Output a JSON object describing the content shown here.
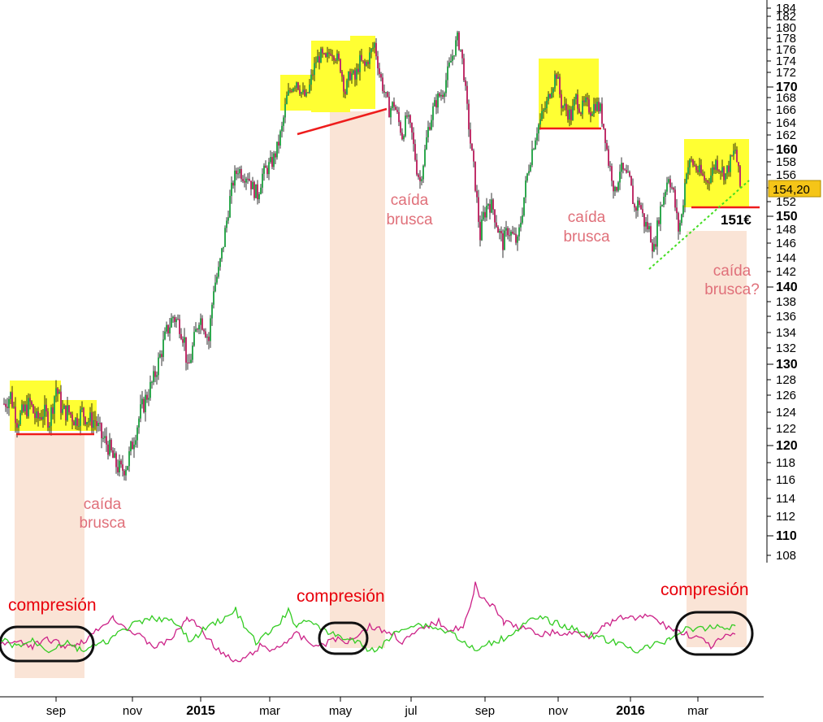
{
  "chart_data": {
    "type": "candlestick",
    "y_axis": {
      "range": [
        106,
        186
      ],
      "minor_ticks": [
        108,
        112,
        114,
        116,
        118,
        122,
        124,
        126,
        128,
        132,
        134,
        136,
        138,
        142,
        144,
        146,
        148,
        152,
        154,
        156,
        158,
        162,
        164,
        166,
        168,
        172,
        174,
        176,
        178,
        180,
        182,
        184
      ],
      "major_ticks": [
        110,
        120,
        130,
        140,
        150,
        160,
        170
      ],
      "labels": [
        "184",
        "180",
        "176",
        "172",
        "170",
        "168",
        "166",
        "164",
        "162",
        "160",
        "158",
        "156",
        "152",
        "150",
        "148",
        "146",
        "144",
        "142",
        "140",
        "138",
        "136",
        "134",
        "132",
        "130",
        "128",
        "126",
        "124",
        "122",
        "120",
        "118",
        "116",
        "114",
        "112",
        "110",
        "108"
      ]
    },
    "x_axis": {
      "labels": [
        {
          "text": "sep",
          "major": false
        },
        {
          "text": "nov",
          "major": false
        },
        {
          "text": "2015",
          "major": true
        },
        {
          "text": "mar",
          "major": false
        },
        {
          "text": "may",
          "major": false
        },
        {
          "text": "jul",
          "major": false
        },
        {
          "text": "sep",
          "major": false
        },
        {
          "text": "nov",
          "major": false
        },
        {
          "text": "2016",
          "major": true
        },
        {
          "text": "mar",
          "major": false
        },
        {
          "text": "mar",
          "major": false
        }
      ]
    },
    "last_price": {
      "label": "154,20",
      "value": 154.2
    },
    "support_label": {
      "text": "151€",
      "value": 151
    },
    "price_anchors": [
      [
        0,
        125
      ],
      [
        8,
        126
      ],
      [
        16,
        123
      ],
      [
        24,
        124
      ],
      [
        32,
        125
      ],
      [
        40,
        123
      ],
      [
        48,
        124
      ],
      [
        56,
        123
      ],
      [
        64,
        127
      ],
      [
        72,
        124
      ],
      [
        80,
        124
      ],
      [
        88,
        123
      ],
      [
        96,
        124
      ],
      [
        104,
        123
      ],
      [
        112,
        123
      ],
      [
        120,
        121
      ],
      [
        128,
        120
      ],
      [
        136,
        118
      ],
      [
        144,
        117
      ],
      [
        152,
        118
      ],
      [
        160,
        121
      ],
      [
        168,
        124
      ],
      [
        176,
        126
      ],
      [
        184,
        128
      ],
      [
        192,
        131
      ],
      [
        200,
        134
      ],
      [
        208,
        136
      ],
      [
        216,
        135
      ],
      [
        222,
        133
      ],
      [
        226,
        129
      ],
      [
        232,
        132
      ],
      [
        240,
        136
      ],
      [
        246,
        135
      ],
      [
        252,
        133
      ],
      [
        258,
        140
      ],
      [
        264,
        142
      ],
      [
        270,
        146
      ],
      [
        276,
        151
      ],
      [
        282,
        155
      ],
      [
        288,
        157
      ],
      [
        294,
        156
      ],
      [
        300,
        156
      ],
      [
        306,
        154
      ],
      [
        312,
        153
      ],
      [
        318,
        156
      ],
      [
        324,
        157
      ],
      [
        330,
        158
      ],
      [
        336,
        160
      ],
      [
        342,
        163
      ],
      [
        348,
        168
      ],
      [
        354,
        170
      ],
      [
        360,
        171
      ],
      [
        366,
        169
      ],
      [
        372,
        168
      ],
      [
        378,
        171
      ],
      [
        384,
        174
      ],
      [
        390,
        175
      ],
      [
        396,
        174
      ],
      [
        402,
        176
      ],
      [
        408,
        175
      ],
      [
        414,
        173
      ],
      [
        420,
        169
      ],
      [
        426,
        172
      ],
      [
        432,
        171
      ],
      [
        438,
        174
      ],
      [
        444,
        173
      ],
      [
        450,
        175
      ],
      [
        456,
        177
      ],
      [
        462,
        172
      ],
      [
        468,
        169
      ],
      [
        474,
        166
      ],
      [
        480,
        167
      ],
      [
        486,
        164
      ],
      [
        490,
        162
      ],
      [
        496,
        165
      ],
      [
        502,
        162
      ],
      [
        508,
        157
      ],
      [
        512,
        155
      ],
      [
        516,
        158
      ],
      [
        522,
        163
      ],
      [
        528,
        166
      ],
      [
        534,
        168
      ],
      [
        540,
        169
      ],
      [
        546,
        172
      ],
      [
        552,
        175
      ],
      [
        558,
        178
      ],
      [
        562,
        176
      ],
      [
        566,
        172
      ],
      [
        570,
        166
      ],
      [
        574,
        161
      ],
      [
        578,
        157
      ],
      [
        582,
        152
      ],
      [
        586,
        147
      ],
      [
        590,
        150
      ],
      [
        596,
        152
      ],
      [
        602,
        151
      ],
      [
        608,
        148
      ],
      [
        614,
        146
      ],
      [
        620,
        148
      ],
      [
        626,
        147
      ],
      [
        632,
        146
      ],
      [
        638,
        151
      ],
      [
        644,
        156
      ],
      [
        650,
        160
      ],
      [
        656,
        163
      ],
      [
        662,
        165
      ],
      [
        668,
        167
      ],
      [
        674,
        170
      ],
      [
        680,
        172
      ],
      [
        686,
        167
      ],
      [
        692,
        166
      ],
      [
        698,
        165
      ],
      [
        704,
        168
      ],
      [
        710,
        166
      ],
      [
        716,
        167
      ],
      [
        722,
        166
      ],
      [
        728,
        167
      ],
      [
        734,
        166
      ],
      [
        740,
        162
      ],
      [
        744,
        158
      ],
      [
        748,
        156
      ],
      [
        752,
        153
      ],
      [
        758,
        157
      ],
      [
        764,
        156
      ],
      [
        770,
        155
      ],
      [
        776,
        151
      ],
      [
        782,
        152
      ],
      [
        788,
        149
      ],
      [
        794,
        148
      ],
      [
        800,
        145
      ],
      [
        806,
        150
      ],
      [
        812,
        153
      ],
      [
        818,
        156
      ],
      [
        824,
        153
      ],
      [
        830,
        148
      ],
      [
        834,
        150
      ],
      [
        840,
        157
      ],
      [
        846,
        158
      ],
      [
        852,
        157
      ],
      [
        858,
        156
      ],
      [
        864,
        155
      ],
      [
        870,
        156
      ],
      [
        876,
        158
      ],
      [
        882,
        157
      ],
      [
        888,
        156
      ],
      [
        894,
        158
      ],
      [
        900,
        160
      ],
      [
        906,
        154.2
      ]
    ],
    "oscillator": {
      "pink": [
        [
          0,
          793
        ],
        [
          20,
          790
        ],
        [
          40,
          795
        ],
        [
          60,
          786
        ],
        [
          80,
          795
        ],
        [
          100,
          790
        ],
        [
          115,
          780
        ],
        [
          130,
          765
        ],
        [
          140,
          760
        ],
        [
          150,
          768
        ],
        [
          160,
          775
        ],
        [
          175,
          785
        ],
        [
          190,
          795
        ],
        [
          205,
          790
        ],
        [
          220,
          775
        ],
        [
          230,
          760
        ],
        [
          245,
          770
        ],
        [
          260,
          790
        ],
        [
          275,
          805
        ],
        [
          290,
          815
        ],
        [
          305,
          808
        ],
        [
          320,
          795
        ],
        [
          335,
          800
        ],
        [
          350,
          790
        ],
        [
          365,
          780
        ],
        [
          380,
          790
        ],
        [
          395,
          795
        ],
        [
          410,
          785
        ],
        [
          425,
          790
        ],
        [
          440,
          780
        ],
        [
          455,
          770
        ],
        [
          470,
          775
        ],
        [
          485,
          780
        ],
        [
          495,
          790
        ],
        [
          510,
          780
        ],
        [
          525,
          770
        ],
        [
          540,
          765
        ],
        [
          555,
          775
        ],
        [
          570,
          770
        ],
        [
          580,
          745
        ],
        [
          585,
          718
        ],
        [
          590,
          730
        ],
        [
          600,
          740
        ],
        [
          610,
          750
        ],
        [
          620,
          765
        ],
        [
          635,
          770
        ],
        [
          650,
          775
        ],
        [
          665,
          780
        ],
        [
          680,
          778
        ],
        [
          695,
          780
        ],
        [
          710,
          778
        ],
        [
          725,
          782
        ],
        [
          735,
          775
        ],
        [
          745,
          770
        ],
        [
          755,
          765
        ],
        [
          770,
          758
        ],
        [
          785,
          762
        ],
        [
          800,
          756
        ],
        [
          810,
          765
        ],
        [
          820,
          770
        ],
        [
          830,
          775
        ],
        [
          845,
          780
        ],
        [
          860,
          785
        ],
        [
          875,
          795
        ],
        [
          890,
          785
        ],
        [
          905,
          780
        ]
      ],
      "green": [
        [
          0,
          786
        ],
        [
          20,
          795
        ],
        [
          40,
          788
        ],
        [
          60,
          800
        ],
        [
          80,
          790
        ],
        [
          100,
          800
        ],
        [
          115,
          795
        ],
        [
          130,
          790
        ],
        [
          145,
          780
        ],
        [
          160,
          770
        ],
        [
          175,
          765
        ],
        [
          190,
          760
        ],
        [
          205,
          762
        ],
        [
          220,
          770
        ],
        [
          235,
          790
        ],
        [
          250,
          775
        ],
        [
          265,
          765
        ],
        [
          280,
          760
        ],
        [
          290,
          750
        ],
        [
          300,
          770
        ],
        [
          315,
          790
        ],
        [
          330,
          780
        ],
        [
          345,
          765
        ],
        [
          355,
          752
        ],
        [
          365,
          770
        ],
        [
          380,
          760
        ],
        [
          395,
          775
        ],
        [
          410,
          780
        ],
        [
          425,
          785
        ],
        [
          440,
          790
        ],
        [
          455,
          800
        ],
        [
          470,
          795
        ],
        [
          485,
          780
        ],
        [
          500,
          770
        ],
        [
          515,
          768
        ],
        [
          530,
          770
        ],
        [
          545,
          775
        ],
        [
          560,
          780
        ],
        [
          575,
          795
        ],
        [
          590,
          800
        ],
        [
          605,
          790
        ],
        [
          620,
          785
        ],
        [
          635,
          775
        ],
        [
          650,
          765
        ],
        [
          665,
          760
        ],
        [
          680,
          765
        ],
        [
          695,
          770
        ],
        [
          710,
          775
        ],
        [
          725,
          780
        ],
        [
          740,
          785
        ],
        [
          755,
          790
        ],
        [
          770,
          795
        ],
        [
          785,
          800
        ],
        [
          800,
          795
        ],
        [
          815,
          790
        ],
        [
          825,
          785
        ],
        [
          835,
          778
        ],
        [
          850,
          772
        ],
        [
          865,
          775
        ],
        [
          880,
          770
        ],
        [
          895,
          772
        ],
        [
          905,
          770
        ]
      ]
    },
    "annotations": [
      {
        "id": "caida1",
        "lines": [
          "caída",
          "brusca"
        ]
      },
      {
        "id": "caida2",
        "lines": [
          "caída",
          "brusca"
        ]
      },
      {
        "id": "caida3",
        "lines": [
          "caída",
          "brusca"
        ]
      },
      {
        "id": "caida4",
        "lines": [
          "caída",
          "brusca?"
        ]
      },
      {
        "id": "comp1",
        "lines": [
          "compresión"
        ]
      },
      {
        "id": "comp2",
        "lines": [
          "compresión"
        ]
      },
      {
        "id": "comp3",
        "lines": [
          "compresión"
        ]
      }
    ],
    "colors": {
      "up_candle": "#2fa84f",
      "down_candle": "#c0306a",
      "wick": "#000000",
      "consolidation_box": "#ffff33",
      "drop_zone": "#fae4d6",
      "support_line": "#ee1c1c",
      "trendline": "#44dd22",
      "osc_pink": "#cc2288",
      "osc_green": "#33cc22",
      "last_price_bg": "#f5c518"
    }
  }
}
